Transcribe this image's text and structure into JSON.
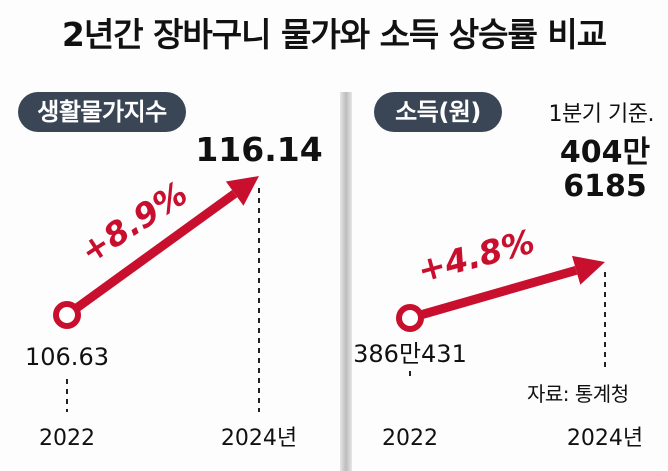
{
  "title": "2년간 장바구니 물가와 소득 상승률 비교",
  "note": "1분기 기준.",
  "source": "자료: 통계청",
  "colors": {
    "accent": "#c8102e",
    "pill": "#3a4656"
  },
  "chart_data": [
    {
      "type": "line",
      "label": "생활물가지수",
      "x": [
        "2022",
        "2024년"
      ],
      "values": [
        106.63,
        116.14
      ],
      "value_labels": [
        "106.63",
        "116.14"
      ],
      "change_label": "+8.9%"
    },
    {
      "type": "line",
      "label": "소득(원)",
      "x": [
        "2022",
        "2024년"
      ],
      "values": [
        3860431,
        4046185
      ],
      "value_labels": [
        "386만431",
        "404만\n6185"
      ],
      "change_label": "+4.8%"
    }
  ]
}
